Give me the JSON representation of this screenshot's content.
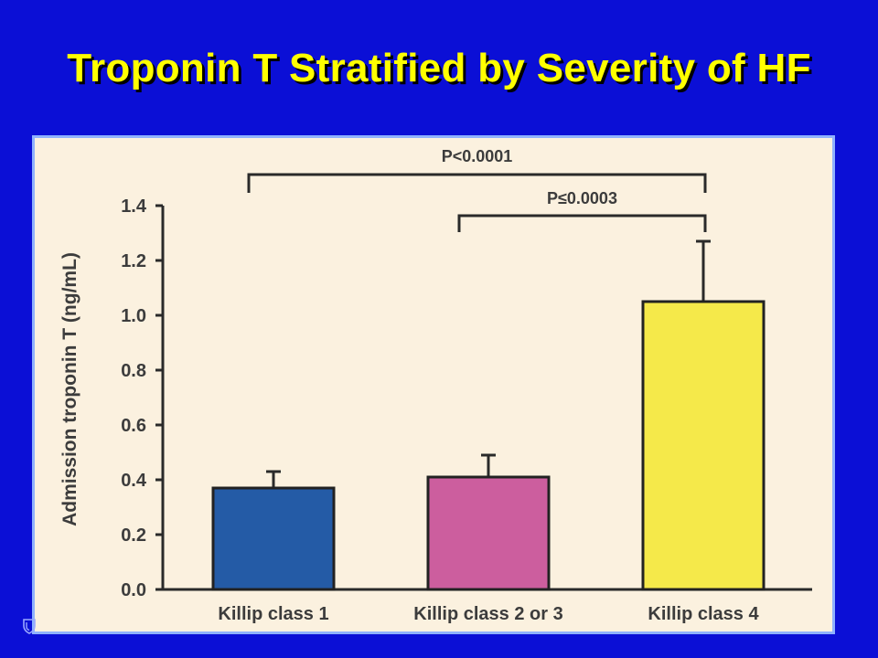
{
  "slide": {
    "title": "Troponin T Stratified by Severity of HF"
  },
  "colors": {
    "background": "#0b0fd6",
    "title": "#ffff00",
    "panel": "#fbf1df",
    "panel_border": "#8fb2ff"
  },
  "chart_data": {
    "type": "bar",
    "categories": [
      "Killip class 1",
      "Killip class 2 or 3",
      "Killip class 4"
    ],
    "values": [
      0.37,
      0.41,
      1.05
    ],
    "error_upper": [
      0.43,
      0.49,
      1.27
    ],
    "bar_colors": [
      "#245ba6",
      "#cc5e9e",
      "#f5e94a"
    ],
    "ylabel": "Admission troponin T (ng/mL)",
    "xlabel": "",
    "ylim": [
      0,
      1.4
    ],
    "yticks": [
      "0.0",
      "0.2",
      "0.4",
      "0.6",
      "0.8",
      "1.0",
      "1.2",
      "1.4"
    ],
    "grid": false,
    "annotations": [
      {
        "text": "P<0.0001",
        "from_category": 0,
        "to_category": 2
      },
      {
        "text": "P≤0.0003",
        "from_category": 1,
        "to_category": 2
      }
    ]
  }
}
